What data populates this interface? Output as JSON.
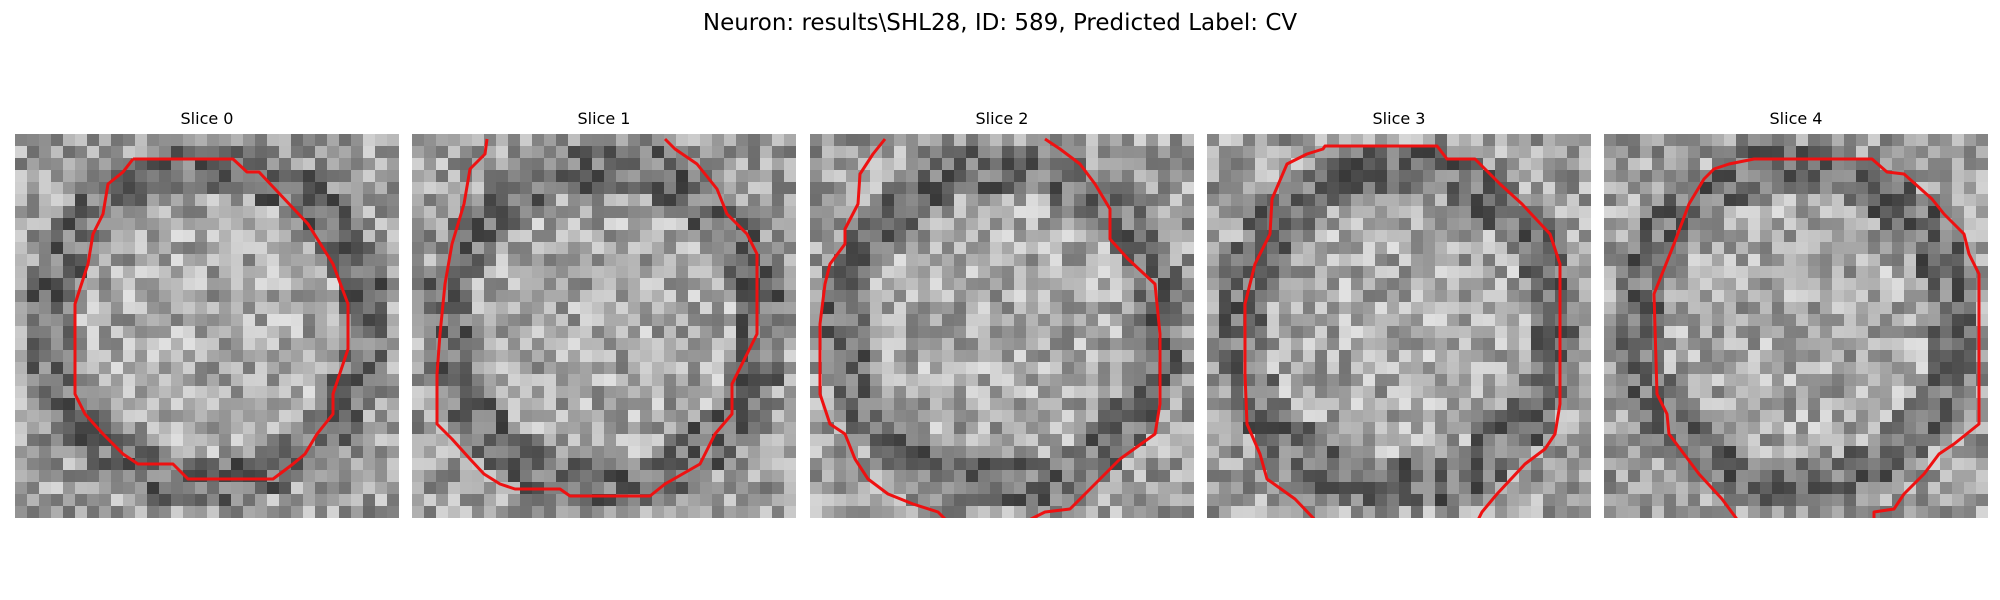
{
  "figure": {
    "title": "Neuron: results\\SHL28, ID: 589, Predicted Label: CV"
  },
  "colors": {
    "contour": "#ee1111",
    "background": "#ffffff"
  },
  "slices": [
    {
      "title": "Slice 0",
      "seed": 11,
      "contour": "closed"
    },
    {
      "title": "Slice 1",
      "seed": 23,
      "contour": "open-top"
    },
    {
      "title": "Slice 2",
      "seed": 37,
      "contour": "open-top-bottom"
    },
    {
      "title": "Slice 3",
      "seed": 41,
      "contour": "open-bottom"
    },
    {
      "title": "Slice 4",
      "seed": 53,
      "contour": "open-bottom"
    }
  ]
}
